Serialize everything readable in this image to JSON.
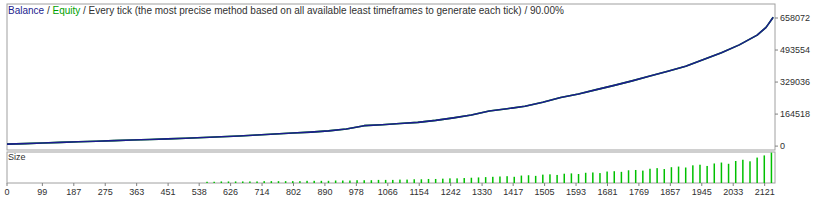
{
  "chart_data": [
    {
      "type": "line",
      "title": "Balance / Equity / Every tick (the most precise method based on all available least timeframes to generate each tick) / 90.00%",
      "x": [
        0,
        50,
        100,
        150,
        200,
        250,
        300,
        350,
        400,
        450,
        500,
        550,
        600,
        650,
        700,
        750,
        800,
        850,
        900,
        950,
        1000,
        1050,
        1100,
        1150,
        1200,
        1250,
        1300,
        1350,
        1400,
        1450,
        1500,
        1550,
        1600,
        1650,
        1700,
        1750,
        1800,
        1850,
        1900,
        1950,
        2000,
        2050,
        2100,
        2125,
        2145
      ],
      "series": [
        {
          "name": "Equity",
          "color": "#00a000",
          "values": [
            10000,
            13000,
            16000,
            19000,
            22000,
            25000,
            28000,
            31000,
            34000,
            37000,
            40000,
            44000,
            48000,
            52000,
            57000,
            62000,
            67000,
            72000,
            78000,
            88000,
            105000,
            110000,
            116000,
            122000,
            132000,
            145000,
            160000,
            180000,
            192000,
            205000,
            225000,
            250000,
            268000,
            290000,
            312000,
            335000,
            360000,
            385000,
            410000,
            445000,
            480000,
            520000,
            570000,
            610000,
            662000
          ]
        },
        {
          "name": "Balance",
          "color": "#1c1c8e",
          "values": [
            10000,
            13000,
            16000,
            19000,
            22000,
            25000,
            28000,
            31000,
            34000,
            37000,
            40000,
            44000,
            48000,
            52000,
            57000,
            62000,
            67000,
            72000,
            78000,
            88000,
            105000,
            110000,
            116000,
            122000,
            132000,
            145000,
            160000,
            180000,
            192000,
            205000,
            225000,
            250000,
            268000,
            290000,
            312000,
            335000,
            360000,
            385000,
            410000,
            445000,
            480000,
            520000,
            570000,
            610000,
            662000
          ]
        }
      ],
      "xlim": [
        0,
        2150
      ],
      "ylim": [
        -20000,
        730000
      ],
      "yticks": [
        0,
        164518,
        329036,
        493554,
        658072
      ],
      "grid": false,
      "tick_labels": "y"
    },
    {
      "type": "bar",
      "title": "Size",
      "x": [
        560,
        580,
        600,
        620,
        640,
        660,
        680,
        700,
        720,
        740,
        760,
        780,
        800,
        820,
        840,
        860,
        880,
        900,
        920,
        940,
        960,
        980,
        1000,
        1020,
        1040,
        1060,
        1080,
        1100,
        1120,
        1140,
        1160,
        1180,
        1200,
        1220,
        1240,
        1260,
        1280,
        1300,
        1320,
        1340,
        1360,
        1380,
        1400,
        1420,
        1440,
        1460,
        1480,
        1500,
        1520,
        1540,
        1560,
        1580,
        1600,
        1620,
        1640,
        1660,
        1680,
        1700,
        1720,
        1740,
        1760,
        1780,
        1800,
        1820,
        1840,
        1860,
        1880,
        1900,
        1920,
        1940,
        1960,
        1980,
        2000,
        2020,
        2040,
        2060,
        2080,
        2100,
        2120,
        2140
      ],
      "values": [
        0.4,
        0.4,
        0.5,
        0.5,
        0.5,
        0.5,
        0.5,
        0.5,
        0.6,
        0.6,
        0.6,
        0.6,
        0.6,
        0.6,
        0.7,
        0.7,
        0.7,
        0.7,
        0.8,
        0.8,
        0.8,
        0.9,
        0.9,
        0.9,
        1.0,
        1.0,
        1.0,
        1.1,
        1.1,
        1.2,
        1.2,
        1.3,
        1.3,
        1.4,
        1.5,
        1.5,
        1.6,
        1.7,
        1.8,
        1.9,
        2.0,
        2.1,
        2.2,
        2.0,
        2.4,
        2.5,
        2.3,
        2.7,
        2.8,
        2.6,
        3.0,
        3.1,
        2.9,
        3.3,
        3.4,
        3.2,
        3.7,
        3.8,
        3.6,
        4.1,
        4.2,
        4.0,
        4.6,
        4.8,
        4.5,
        5.1,
        5.3,
        5.0,
        5.7,
        5.9,
        5.5,
        6.3,
        6.6,
        6.2,
        7.1,
        7.5,
        7.0,
        8.2,
        8.9,
        9.8
      ],
      "color": "#00c000",
      "xlim": [
        0,
        2150
      ],
      "ylim": [
        0,
        10
      ],
      "xticks": [
        0,
        99,
        187,
        275,
        363,
        451,
        538,
        626,
        714,
        802,
        890,
        978,
        1066,
        1154,
        1242,
        1330,
        1417,
        1505,
        1593,
        1681,
        1769,
        1857,
        1945,
        2033,
        2121
      ],
      "grid": false,
      "tick_labels": "x"
    }
  ]
}
